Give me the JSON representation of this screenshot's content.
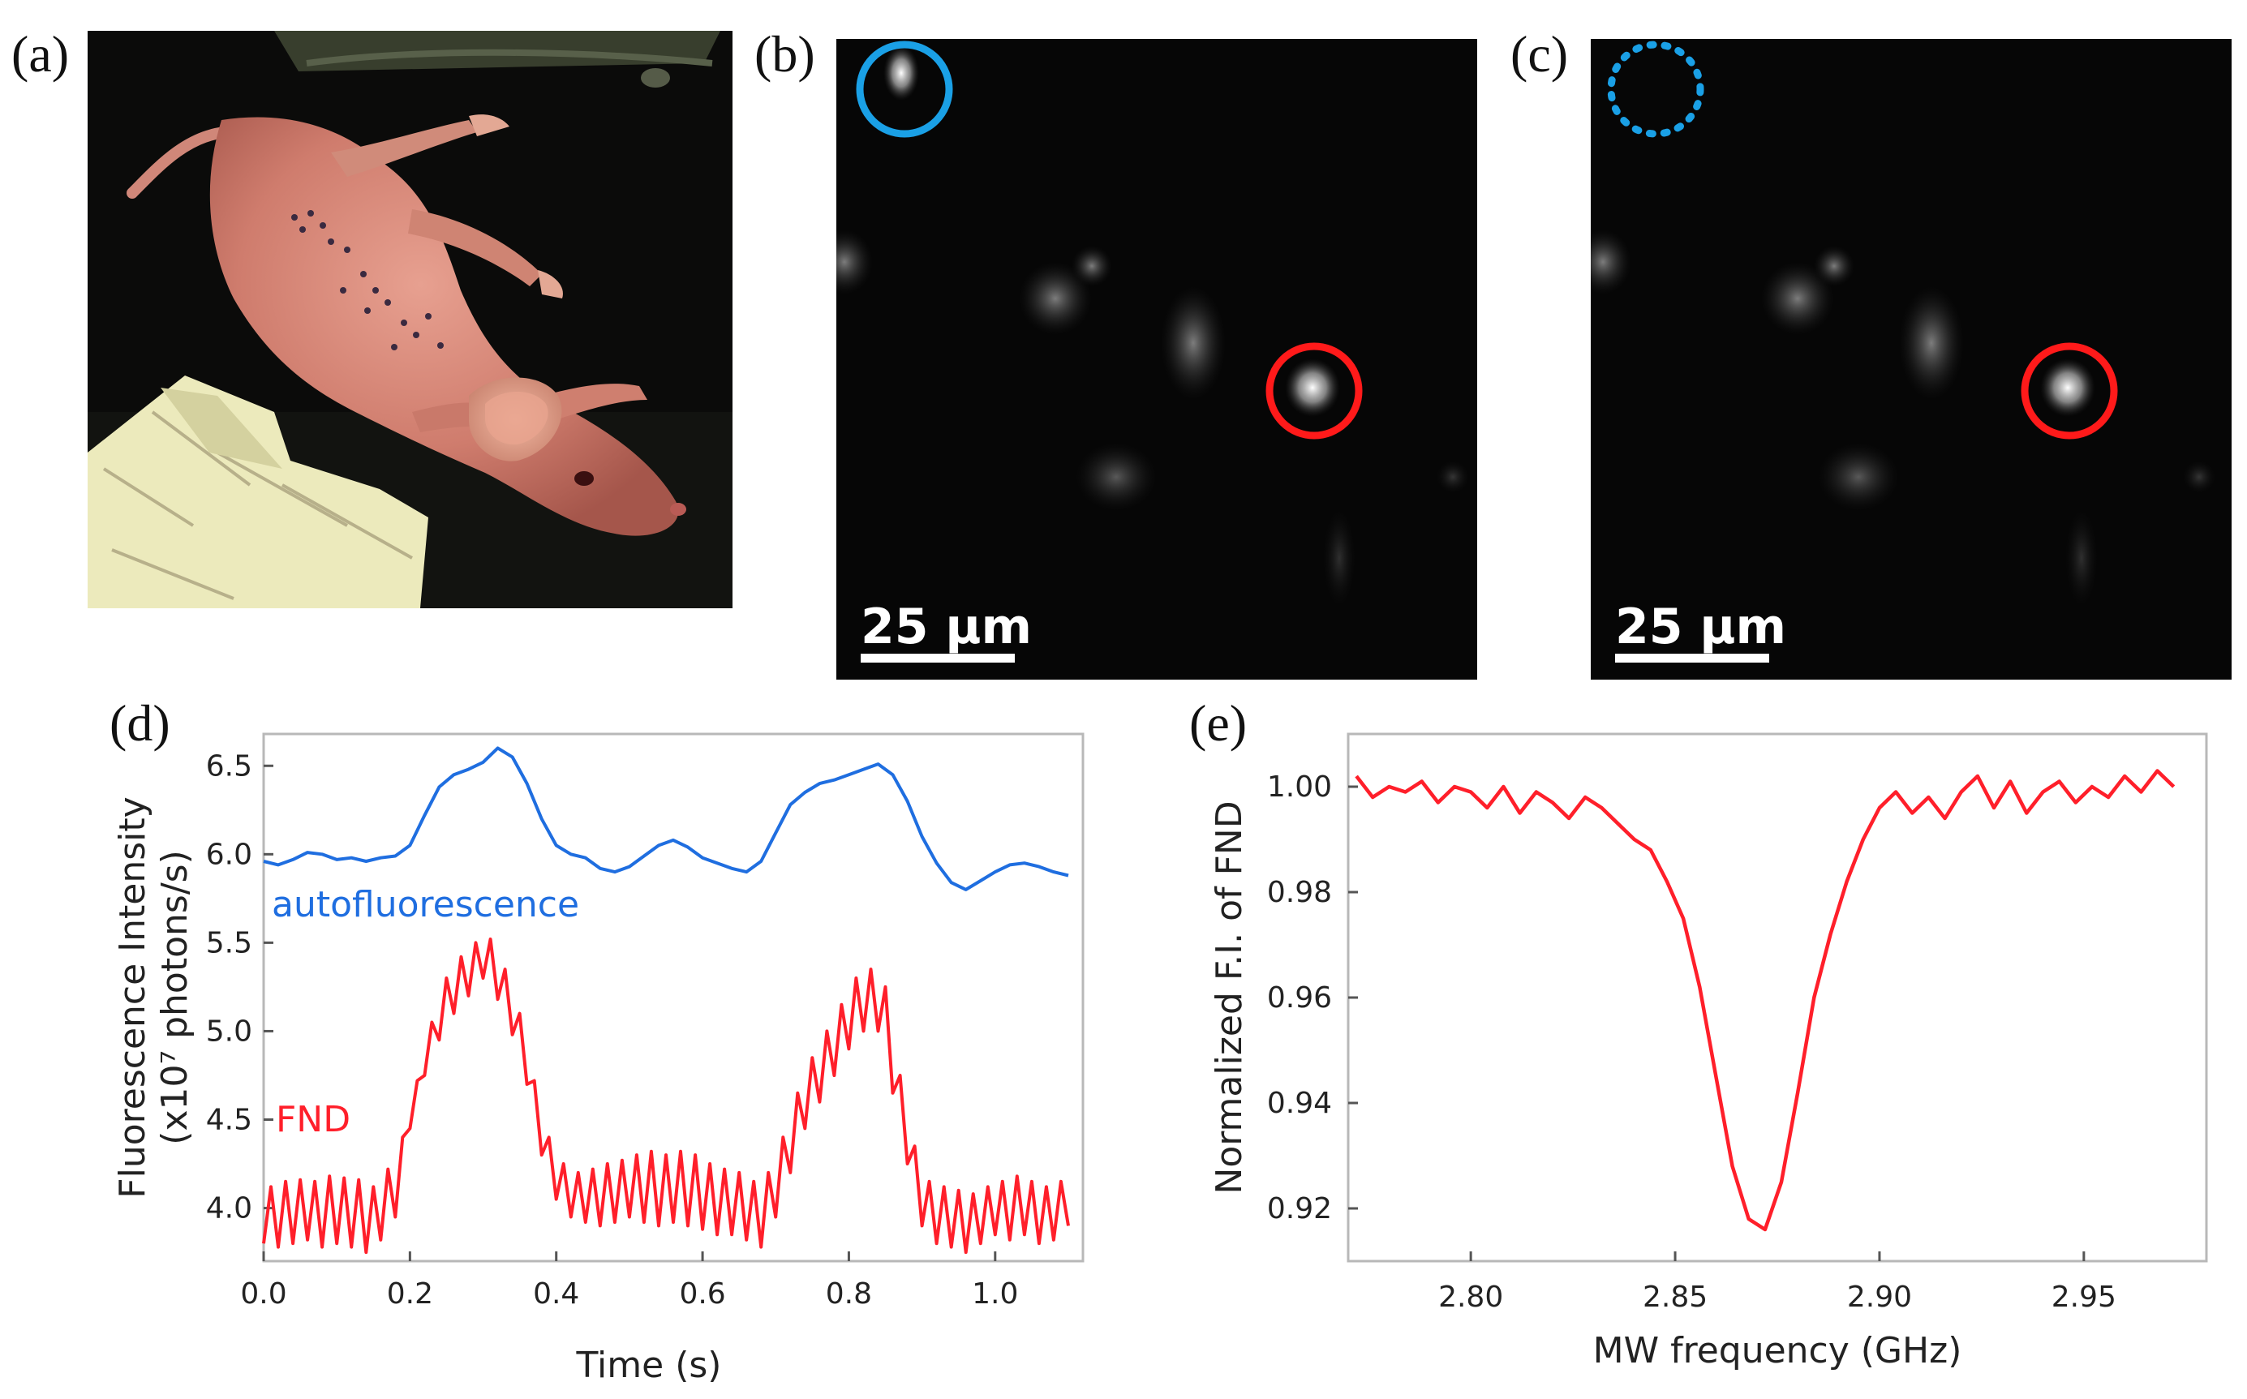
{
  "figure": {
    "panel_labels": {
      "a": "(a)",
      "b": "(b)",
      "c": "(c)",
      "d": "(d)",
      "e": "(e)"
    },
    "panel_b": {
      "scale_bar_label": "25 µm"
    },
    "panel_c": {
      "scale_bar_label": "25 µm"
    },
    "colors": {
      "fnd": "#ff1f2a",
      "autofluorescence": "#1f6ee0",
      "blue_circle": "#1aa0e6",
      "red_circle": "#ff1a1a"
    }
  },
  "chart_data": [
    {
      "type": "line",
      "panel": "d",
      "xlabel": "Time (s)",
      "ylabel_line1": "Fluorescence Intensity",
      "ylabel_line2": "(x10⁷ photons/s)",
      "xlim": [
        0.0,
        1.12
      ],
      "ylim": [
        3.7,
        6.68
      ],
      "x_ticks": [
        0.0,
        0.2,
        0.4,
        0.6,
        0.8,
        1.0
      ],
      "x_tick_labels": [
        "0.0",
        "0.2",
        "0.4",
        "0.6",
        "0.8",
        "1.0"
      ],
      "y_ticks": [
        4.0,
        4.5,
        5.0,
        5.5,
        6.0,
        6.5
      ],
      "y_tick_labels": [
        "4.0",
        "4.5",
        "5.0",
        "5.5",
        "6.0",
        "6.5"
      ],
      "series": [
        {
          "name": "autofluorescence",
          "color": "#1f6ee0",
          "x": [
            0.0,
            0.02,
            0.04,
            0.06,
            0.08,
            0.1,
            0.12,
            0.14,
            0.16,
            0.18,
            0.2,
            0.22,
            0.24,
            0.26,
            0.28,
            0.3,
            0.32,
            0.34,
            0.36,
            0.38,
            0.4,
            0.42,
            0.44,
            0.46,
            0.48,
            0.5,
            0.52,
            0.54,
            0.56,
            0.58,
            0.6,
            0.62,
            0.64,
            0.66,
            0.68,
            0.7,
            0.72,
            0.74,
            0.76,
            0.78,
            0.8,
            0.82,
            0.84,
            0.86,
            0.88,
            0.9,
            0.92,
            0.94,
            0.96,
            0.98,
            1.0,
            1.02,
            1.04,
            1.06,
            1.08,
            1.1
          ],
          "values": [
            5.96,
            5.94,
            5.97,
            6.01,
            6.0,
            5.97,
            5.98,
            5.96,
            5.98,
            5.99,
            6.05,
            6.22,
            6.38,
            6.45,
            6.48,
            6.52,
            6.6,
            6.55,
            6.4,
            6.2,
            6.05,
            6.0,
            5.98,
            5.92,
            5.9,
            5.93,
            5.99,
            6.05,
            6.08,
            6.04,
            5.98,
            5.95,
            5.92,
            5.9,
            5.96,
            6.12,
            6.28,
            6.35,
            6.4,
            6.42,
            6.45,
            6.48,
            6.51,
            6.45,
            6.3,
            6.1,
            5.95,
            5.84,
            5.8,
            5.85,
            5.9,
            5.94,
            5.95,
            5.93,
            5.9,
            5.88
          ]
        },
        {
          "name": "FND",
          "color": "#ff1f2a",
          "x": [
            0.0,
            0.01,
            0.02,
            0.03,
            0.04,
            0.05,
            0.06,
            0.07,
            0.08,
            0.09,
            0.1,
            0.11,
            0.12,
            0.13,
            0.14,
            0.15,
            0.16,
            0.17,
            0.18,
            0.19,
            0.2,
            0.21,
            0.22,
            0.23,
            0.24,
            0.25,
            0.26,
            0.27,
            0.28,
            0.29,
            0.3,
            0.31,
            0.32,
            0.33,
            0.34,
            0.35,
            0.36,
            0.37,
            0.38,
            0.39,
            0.4,
            0.41,
            0.42,
            0.43,
            0.44,
            0.45,
            0.46,
            0.47,
            0.48,
            0.49,
            0.5,
            0.51,
            0.52,
            0.53,
            0.54,
            0.55,
            0.56,
            0.57,
            0.58,
            0.59,
            0.6,
            0.61,
            0.62,
            0.63,
            0.64,
            0.65,
            0.66,
            0.67,
            0.68,
            0.69,
            0.7,
            0.71,
            0.72,
            0.73,
            0.74,
            0.75,
            0.76,
            0.77,
            0.78,
            0.79,
            0.8,
            0.81,
            0.82,
            0.83,
            0.84,
            0.85,
            0.86,
            0.87,
            0.88,
            0.89,
            0.9,
            0.91,
            0.92,
            0.93,
            0.94,
            0.95,
            0.96,
            0.97,
            0.98,
            0.99,
            1.0,
            1.01,
            1.02,
            1.03,
            1.04,
            1.05,
            1.06,
            1.07,
            1.08,
            1.09,
            1.1
          ],
          "values": [
            3.8,
            4.12,
            3.78,
            4.15,
            3.8,
            4.16,
            3.82,
            4.15,
            3.78,
            4.18,
            3.8,
            4.17,
            3.78,
            4.16,
            3.75,
            4.12,
            3.82,
            4.22,
            3.95,
            4.4,
            4.45,
            4.72,
            4.75,
            5.05,
            4.95,
            5.3,
            5.1,
            5.42,
            5.2,
            5.5,
            5.3,
            5.52,
            5.18,
            5.35,
            4.98,
            5.1,
            4.7,
            4.72,
            4.3,
            4.4,
            4.05,
            4.25,
            3.95,
            4.2,
            3.92,
            4.22,
            3.9,
            4.25,
            3.92,
            4.27,
            3.95,
            4.3,
            3.92,
            4.32,
            3.9,
            4.3,
            3.92,
            4.32,
            3.9,
            4.3,
            3.88,
            4.25,
            3.85,
            4.22,
            3.85,
            4.2,
            3.82,
            4.15,
            3.78,
            4.2,
            3.95,
            4.4,
            4.2,
            4.65,
            4.45,
            4.85,
            4.6,
            5.0,
            4.75,
            5.15,
            4.9,
            5.3,
            5.0,
            5.35,
            5.0,
            5.25,
            4.65,
            4.75,
            4.25,
            4.35,
            3.9,
            4.15,
            3.8,
            4.12,
            3.78,
            4.1,
            3.75,
            4.08,
            3.8,
            4.12,
            3.85,
            4.15,
            3.82,
            4.18,
            3.85,
            4.15,
            3.8,
            4.12,
            3.82,
            4.15,
            3.9
          ]
        }
      ],
      "annotations": [
        {
          "text": "autofluorescence",
          "series": "autofluorescence"
        },
        {
          "text": "FND",
          "series": "FND"
        }
      ]
    },
    {
      "type": "line",
      "panel": "e",
      "xlabel": "MW frequency (GHz)",
      "ylabel": "Normalized F.I. of FND",
      "xlim": [
        2.77,
        2.98
      ],
      "ylim": [
        0.91,
        1.01
      ],
      "x_ticks": [
        2.8,
        2.85,
        2.9,
        2.95
      ],
      "x_tick_labels": [
        "2.80",
        "2.85",
        "2.90",
        "2.95"
      ],
      "y_ticks": [
        0.92,
        0.94,
        0.96,
        0.98,
        1.0
      ],
      "y_tick_labels": [
        "0.92",
        "0.94",
        "0.96",
        "0.98",
        "1.00"
      ],
      "series": [
        {
          "name": "FND",
          "color": "#ff1f2a",
          "x": [
            2.772,
            2.776,
            2.78,
            2.784,
            2.788,
            2.792,
            2.796,
            2.8,
            2.804,
            2.808,
            2.812,
            2.816,
            2.82,
            2.824,
            2.828,
            2.832,
            2.836,
            2.84,
            2.844,
            2.848,
            2.852,
            2.856,
            2.86,
            2.864,
            2.868,
            2.872,
            2.876,
            2.88,
            2.884,
            2.888,
            2.892,
            2.896,
            2.9,
            2.904,
            2.908,
            2.912,
            2.916,
            2.92,
            2.924,
            2.928,
            2.932,
            2.936,
            2.94,
            2.944,
            2.948,
            2.952,
            2.956,
            2.96,
            2.964,
            2.968,
            2.972
          ],
          "values": [
            1.002,
            0.998,
            1.0,
            0.999,
            1.001,
            0.997,
            1.0,
            0.999,
            0.996,
            1.0,
            0.995,
            0.999,
            0.997,
            0.994,
            0.998,
            0.996,
            0.993,
            0.99,
            0.988,
            0.982,
            0.975,
            0.962,
            0.945,
            0.928,
            0.918,
            0.916,
            0.925,
            0.942,
            0.96,
            0.972,
            0.982,
            0.99,
            0.996,
            0.999,
            0.995,
            0.998,
            0.994,
            0.999,
            1.002,
            0.996,
            1.001,
            0.995,
            0.999,
            1.001,
            0.997,
            1.0,
            0.998,
            1.002,
            0.999,
            1.003,
            1.0
          ]
        }
      ]
    }
  ]
}
